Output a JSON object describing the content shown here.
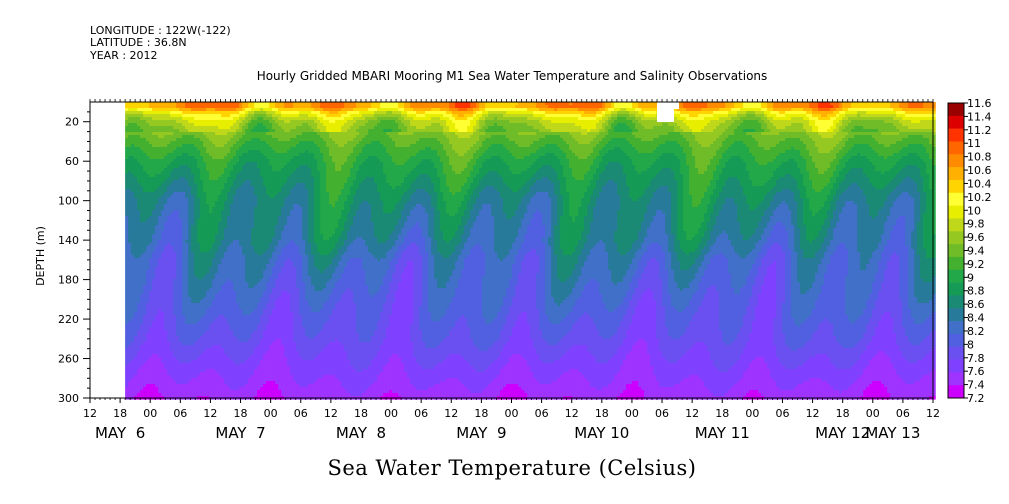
{
  "header": {
    "longitude": "LONGITUDE : 122W(-122)",
    "latitude": "LATITUDE : 36.8N",
    "year": "YEAR : 2012"
  },
  "chart_data": {
    "type": "heatmap",
    "title": "Hourly Gridded MBARI Mooring M1 Sea Water Temperature and Salinity Observations",
    "xlabel": "Sea Water Temperature (Celsius)",
    "ylabel": "DEPTH (m)",
    "ylim": [
      300,
      0
    ],
    "y_ticks": [
      20,
      60,
      100,
      140,
      180,
      220,
      260,
      300
    ],
    "x_hour_ticks": [
      "12",
      "18",
      "00",
      "06",
      "12",
      "18",
      "00",
      "06",
      "12",
      "18",
      "00",
      "06",
      "12",
      "18",
      "00",
      "06",
      "12",
      "18",
      "00",
      "06",
      "12",
      "18",
      "00",
      "06",
      "12",
      "18",
      "00",
      "06",
      "12"
    ],
    "x_day_labels": [
      "MAY  6",
      "MAY  7",
      "MAY  8",
      "MAY  9",
      "MAY 10",
      "MAY 11",
      "MAY 12",
      "MAY 13"
    ],
    "x_range_hours": [
      0,
      168
    ],
    "data_start_hour": 7,
    "colorbar": {
      "levels": [
        7.2,
        7.4,
        7.6,
        7.8,
        8,
        8.2,
        8.4,
        8.6,
        8.8,
        9,
        9.2,
        9.4,
        9.6,
        9.8,
        10,
        10.2,
        10.4,
        10.6,
        10.8,
        11,
        11.2,
        11.4,
        11.6
      ],
      "labels": [
        "7.2",
        "7.4",
        "7.6",
        "7.8",
        "8",
        "8.2",
        "8.4",
        "8.6",
        "8.8",
        "9",
        "9.2",
        "9.4",
        "9.6",
        "9.8",
        "10",
        "10.2",
        "10.4",
        "10.6",
        "10.8",
        "11",
        "11.2",
        "11.4",
        "11.6"
      ],
      "colors": [
        "#cc00ff",
        "#9f33ff",
        "#8040ff",
        "#6a50f0",
        "#5060e0",
        "#4070c8",
        "#287a9a",
        "#1a8a74",
        "#159b55",
        "#22a848",
        "#44b030",
        "#6fbc28",
        "#96c822",
        "#c0d81a",
        "#e8ee00",
        "#ffff33",
        "#ffd400",
        "#ffb000",
        "#ff8c00",
        "#ff6600",
        "#ff3300",
        "#dd0000",
        "#990000"
      ]
    },
    "depth_profile": {
      "depth_m": [
        5,
        10,
        15,
        20,
        30,
        40,
        60,
        80,
        100,
        120,
        140,
        160,
        180,
        200,
        220,
        240,
        260,
        280,
        300
      ],
      "temperature_c": [
        10.8,
        10.3,
        10.0,
        9.8,
        9.6,
        9.4,
        9.1,
        8.9,
        8.7,
        8.6,
        8.5,
        8.3,
        8.2,
        8.1,
        8.0,
        7.9,
        7.75,
        7.6,
        7.45
      ]
    }
  }
}
